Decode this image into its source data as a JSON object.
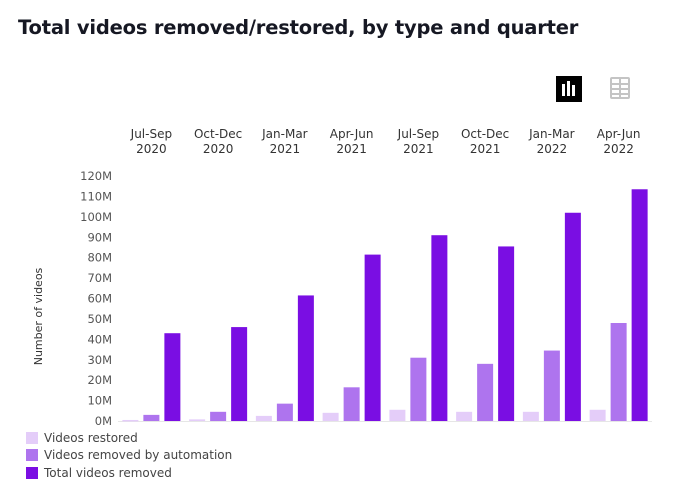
{
  "colors": {
    "restored": "#e4cdf9",
    "automation": "#ae74ee",
    "total": "#7a0ee3",
    "axis_text": "#555555",
    "grid": "#e6e6e6"
  },
  "icons": {
    "chart_view": "bar-chart-icon",
    "table_view": "table-icon"
  },
  "chart_data": {
    "type": "bar",
    "title": "Total videos removed/restored, by type and quarter",
    "xlabel": "",
    "ylabel": "Number of videos",
    "ylim": [
      0,
      120
    ],
    "y_unit": "M",
    "yticks": [
      0,
      10,
      20,
      30,
      40,
      50,
      60,
      70,
      80,
      90,
      100,
      110,
      120
    ],
    "ytick_labels": [
      "0M",
      "10M",
      "20M",
      "30M",
      "40M",
      "50M",
      "60M",
      "70M",
      "80M",
      "90M",
      "100M",
      "110M",
      "120M"
    ],
    "x_axis_position": "top",
    "grid": false,
    "legend_position": "bottom-left",
    "categories": [
      [
        "Jul-Sep",
        "2020"
      ],
      [
        "Oct-Dec",
        "2020"
      ],
      [
        "Jan-Mar",
        "2021"
      ],
      [
        "Apr-Jun",
        "2021"
      ],
      [
        "Jul-Sep",
        "2021"
      ],
      [
        "Oct-Dec",
        "2021"
      ],
      [
        "Jan-Mar",
        "2022"
      ],
      [
        "Apr-Jun",
        "2022"
      ]
    ],
    "series": [
      {
        "name": "Videos restored",
        "color_key": "restored",
        "values": [
          0.5,
          0.8,
          2.5,
          4,
          5.5,
          4.5,
          4.5,
          5.5
        ]
      },
      {
        "name": "Videos removed by automation",
        "color_key": "automation",
        "values": [
          3,
          4.5,
          8.5,
          16.5,
          31,
          28,
          34.5,
          48
        ]
      },
      {
        "name": "Total videos removed",
        "color_key": "total",
        "values": [
          43,
          46,
          61.5,
          81.5,
          91,
          85.5,
          102,
          113.5
        ]
      }
    ]
  }
}
